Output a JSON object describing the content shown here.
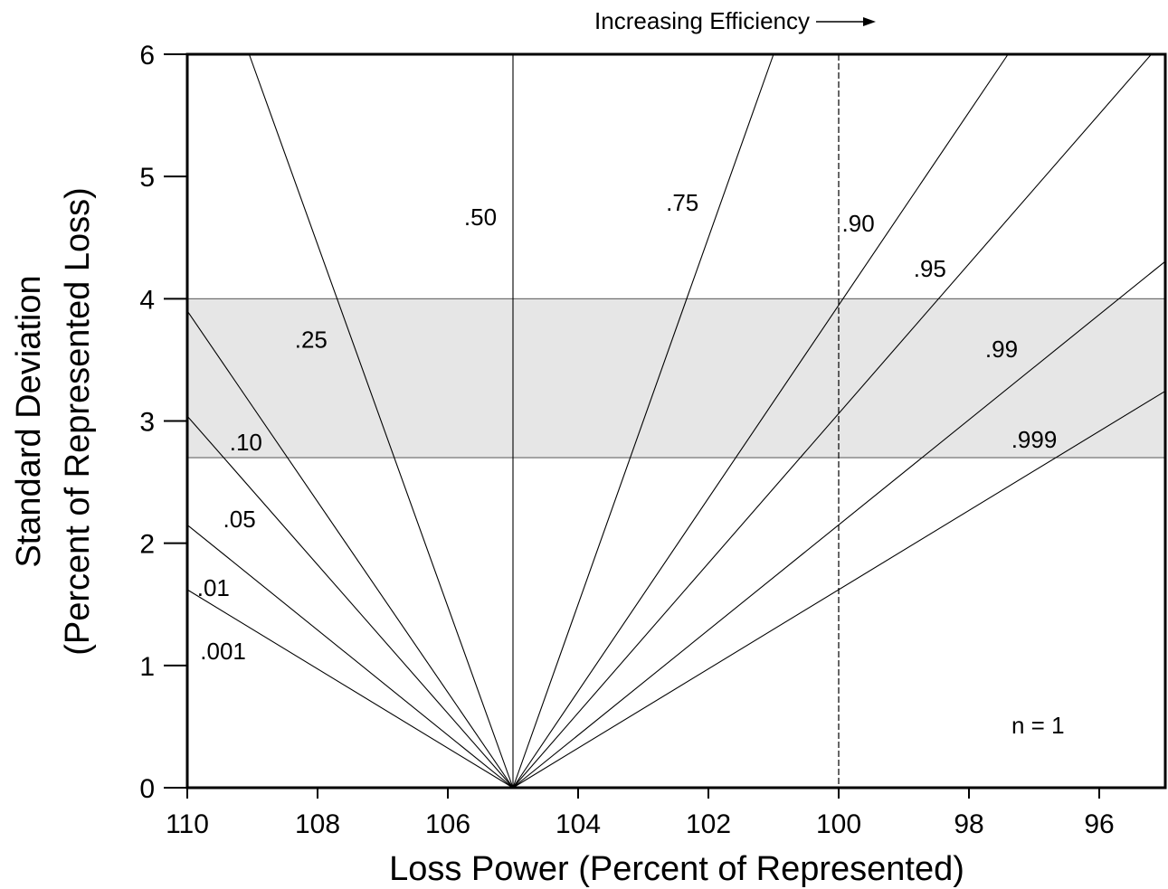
{
  "chart_data": {
    "type": "line",
    "title": "",
    "top_annotation": "Increasing Efficiency",
    "xlabel": "Loss Power (Percent of Represented)",
    "ylabel_line1": "Standard Deviation",
    "ylabel_line2": "(Percent of Represented Loss)",
    "x_reversed": true,
    "xlim": [
      110,
      95
    ],
    "ylim": [
      0,
      6
    ],
    "x_ticks": [
      110,
      108,
      106,
      104,
      102,
      100,
      98,
      96
    ],
    "x_tick_labels": [
      "110",
      "108",
      "106",
      "104",
      "102",
      "100",
      "98",
      "96"
    ],
    "y_ticks": [
      0,
      1,
      2,
      3,
      4,
      5,
      6
    ],
    "y_tick_labels": [
      "0",
      "1",
      "2",
      "3",
      "4",
      "5",
      "6"
    ],
    "shaded_band": {
      "y_from": 2.7,
      "y_to": 4.0,
      "color": "#e6e6e6"
    },
    "reference_line": {
      "x": 100,
      "style": "dashed"
    },
    "annotation": "n = 1",
    "grid": false,
    "series": [
      {
        "name": ".001",
        "label_at": [
          109.45,
          1.05
        ],
        "points": [
          [
            105.0,
            0.0
          ],
          [
            110.0,
            1.62
          ]
        ]
      },
      {
        "name": ".01",
        "label_at": [
          109.6,
          1.57
        ],
        "points": [
          [
            105.0,
            0.0
          ],
          [
            110.0,
            2.15
          ]
        ]
      },
      {
        "name": ".05",
        "label_at": [
          109.2,
          2.13
        ],
        "points": [
          [
            105.0,
            0.0
          ],
          [
            110.0,
            3.04
          ]
        ]
      },
      {
        "name": ".10",
        "label_at": [
          109.1,
          2.76
        ],
        "points": [
          [
            105.0,
            0.0
          ],
          [
            110.0,
            3.9
          ]
        ]
      },
      {
        "name": ".25",
        "label_at": [
          108.1,
          3.6
        ],
        "points": [
          [
            105.0,
            0.0
          ],
          [
            109.05,
            6.0
          ]
        ]
      },
      {
        "name": ".50",
        "label_at": [
          105.5,
          4.6
        ],
        "points": [
          [
            105.0,
            0.0
          ],
          [
            105.0,
            6.0
          ]
        ]
      },
      {
        "name": ".75",
        "label_at": [
          102.4,
          4.72
        ],
        "points": [
          [
            105.0,
            0.0
          ],
          [
            101.0,
            6.0
          ]
        ]
      },
      {
        "name": ".90",
        "label_at": [
          99.7,
          4.55
        ],
        "points": [
          [
            105.0,
            0.0
          ],
          [
            97.4,
            6.0
          ]
        ]
      },
      {
        "name": ".95",
        "label_at": [
          98.6,
          4.18
        ],
        "points": [
          [
            105.0,
            0.0
          ],
          [
            95.2,
            6.0
          ]
        ]
      },
      {
        "name": ".99",
        "label_at": [
          97.5,
          3.52
        ],
        "points": [
          [
            105.0,
            0.0
          ],
          [
            95.0,
            4.3
          ]
        ]
      },
      {
        "name": ".999",
        "label_at": [
          97.0,
          2.78
        ],
        "points": [
          [
            105.0,
            0.0
          ],
          [
            95.0,
            3.24
          ]
        ]
      }
    ]
  }
}
